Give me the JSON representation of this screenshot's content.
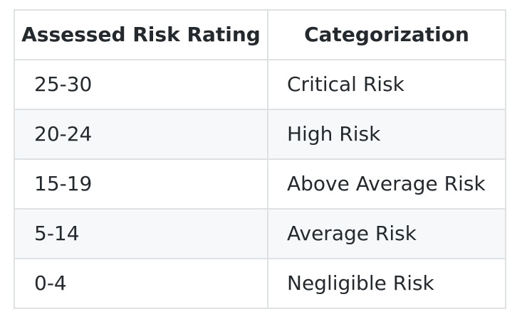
{
  "table": {
    "headers": [
      "Assessed Risk Rating",
      "Categorization"
    ],
    "rows": [
      [
        "25-30",
        "Critical Risk"
      ],
      [
        "20-24",
        "High Risk"
      ],
      [
        "15-19",
        "Above Average Risk"
      ],
      [
        "5-14",
        "Average Risk"
      ],
      [
        "0-4",
        "Negligible Risk"
      ]
    ]
  },
  "colors": {
    "border": "#dfe2e5",
    "stripe": "#f6f8fa",
    "text": "#24292e"
  }
}
